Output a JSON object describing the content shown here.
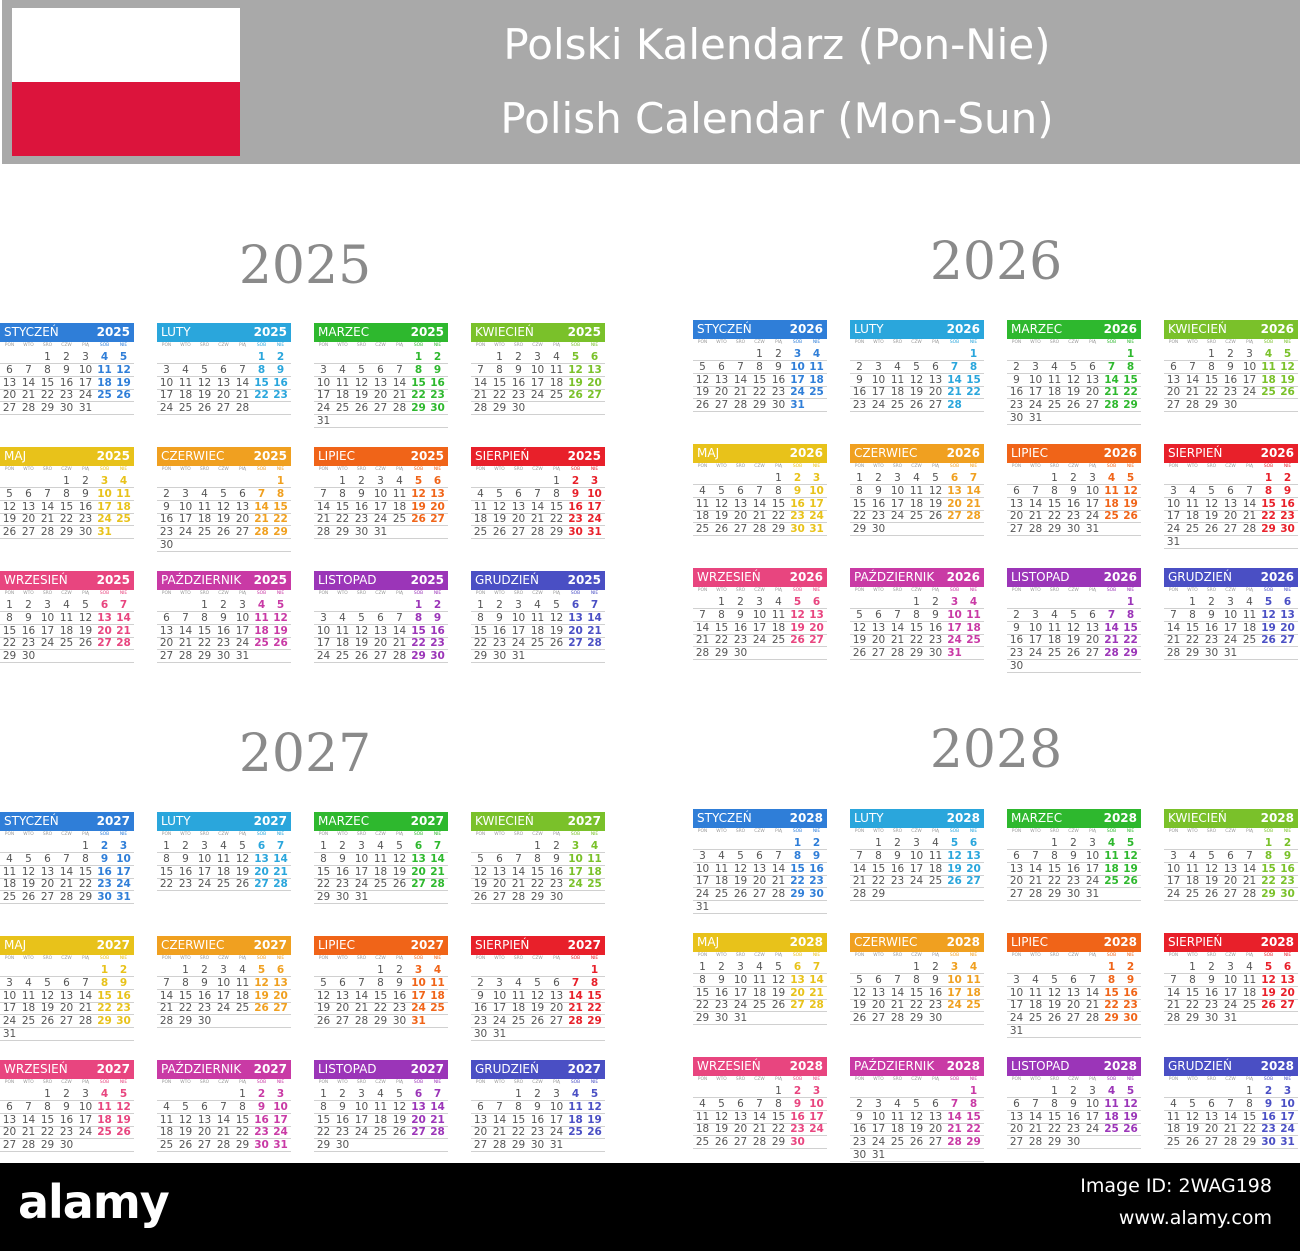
{
  "header": {
    "line1": "Polski Kalendarz (Pon-Nie)",
    "line2": "Polish Calendar (Mon-Sun)",
    "flag_colors": [
      "#ffffff",
      "#dc143c"
    ]
  },
  "weekday_abbrs": [
    "PON",
    "WTO",
    "ŚRO",
    "CZW",
    "PIĄ",
    "SOB",
    "NIE"
  ],
  "months": [
    {
      "name": "STYCZEŃ",
      "color": "#2f7ed8"
    },
    {
      "name": "LUTY",
      "color": "#2aa6dc"
    },
    {
      "name": "MARZEC",
      "color": "#2eb82e"
    },
    {
      "name": "KWIECIEŃ",
      "color": "#7ac12a"
    },
    {
      "name": "MAJ",
      "color": "#e8c21a"
    },
    {
      "name": "CZERWIEC",
      "color": "#f0a020"
    },
    {
      "name": "LIPIEC",
      "color": "#f06418"
    },
    {
      "name": "SIERPIEŃ",
      "color": "#e8202a"
    },
    {
      "name": "WRZESIEŃ",
      "color": "#e8457f"
    },
    {
      "name": "PAŹDZIERNIK",
      "color": "#c93aa5"
    },
    {
      "name": "LISTOPAD",
      "color": "#9b35b8"
    },
    {
      "name": "GRUDZIEŃ",
      "color": "#4a4fc4"
    }
  ],
  "years": [
    {
      "year": "2025"
    },
    {
      "year": "2026"
    },
    {
      "year": "2027"
    },
    {
      "year": "2028"
    }
  ],
  "footer": {
    "logo": "alamy",
    "image_id": "Image ID: 2WAG198",
    "url": "www.alamy.com"
  }
}
